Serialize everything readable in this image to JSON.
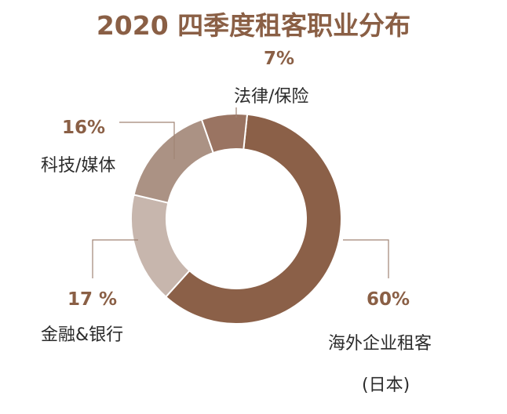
{
  "chart_data": {
    "type": "pie",
    "title": "2020 四季度租客职业分布",
    "categories": [
      "海外企业租客(日本)",
      "金融&银行",
      "科技/媒体",
      "法律/保险"
    ],
    "values": [
      60,
      17,
      16,
      7
    ],
    "value_labels": [
      "60%",
      "17 %",
      "16%",
      "7%"
    ],
    "category_labels": {
      "foreign": "海外企业租客",
      "foreign_sub": "(日本)",
      "finance": "金融&银行",
      "tech": "科技/媒体",
      "legal": "法律/保险"
    },
    "colors": [
      "#8b6048",
      "#c7b6ad",
      "#ab9284",
      "#9a7462"
    ],
    "donut": true
  }
}
